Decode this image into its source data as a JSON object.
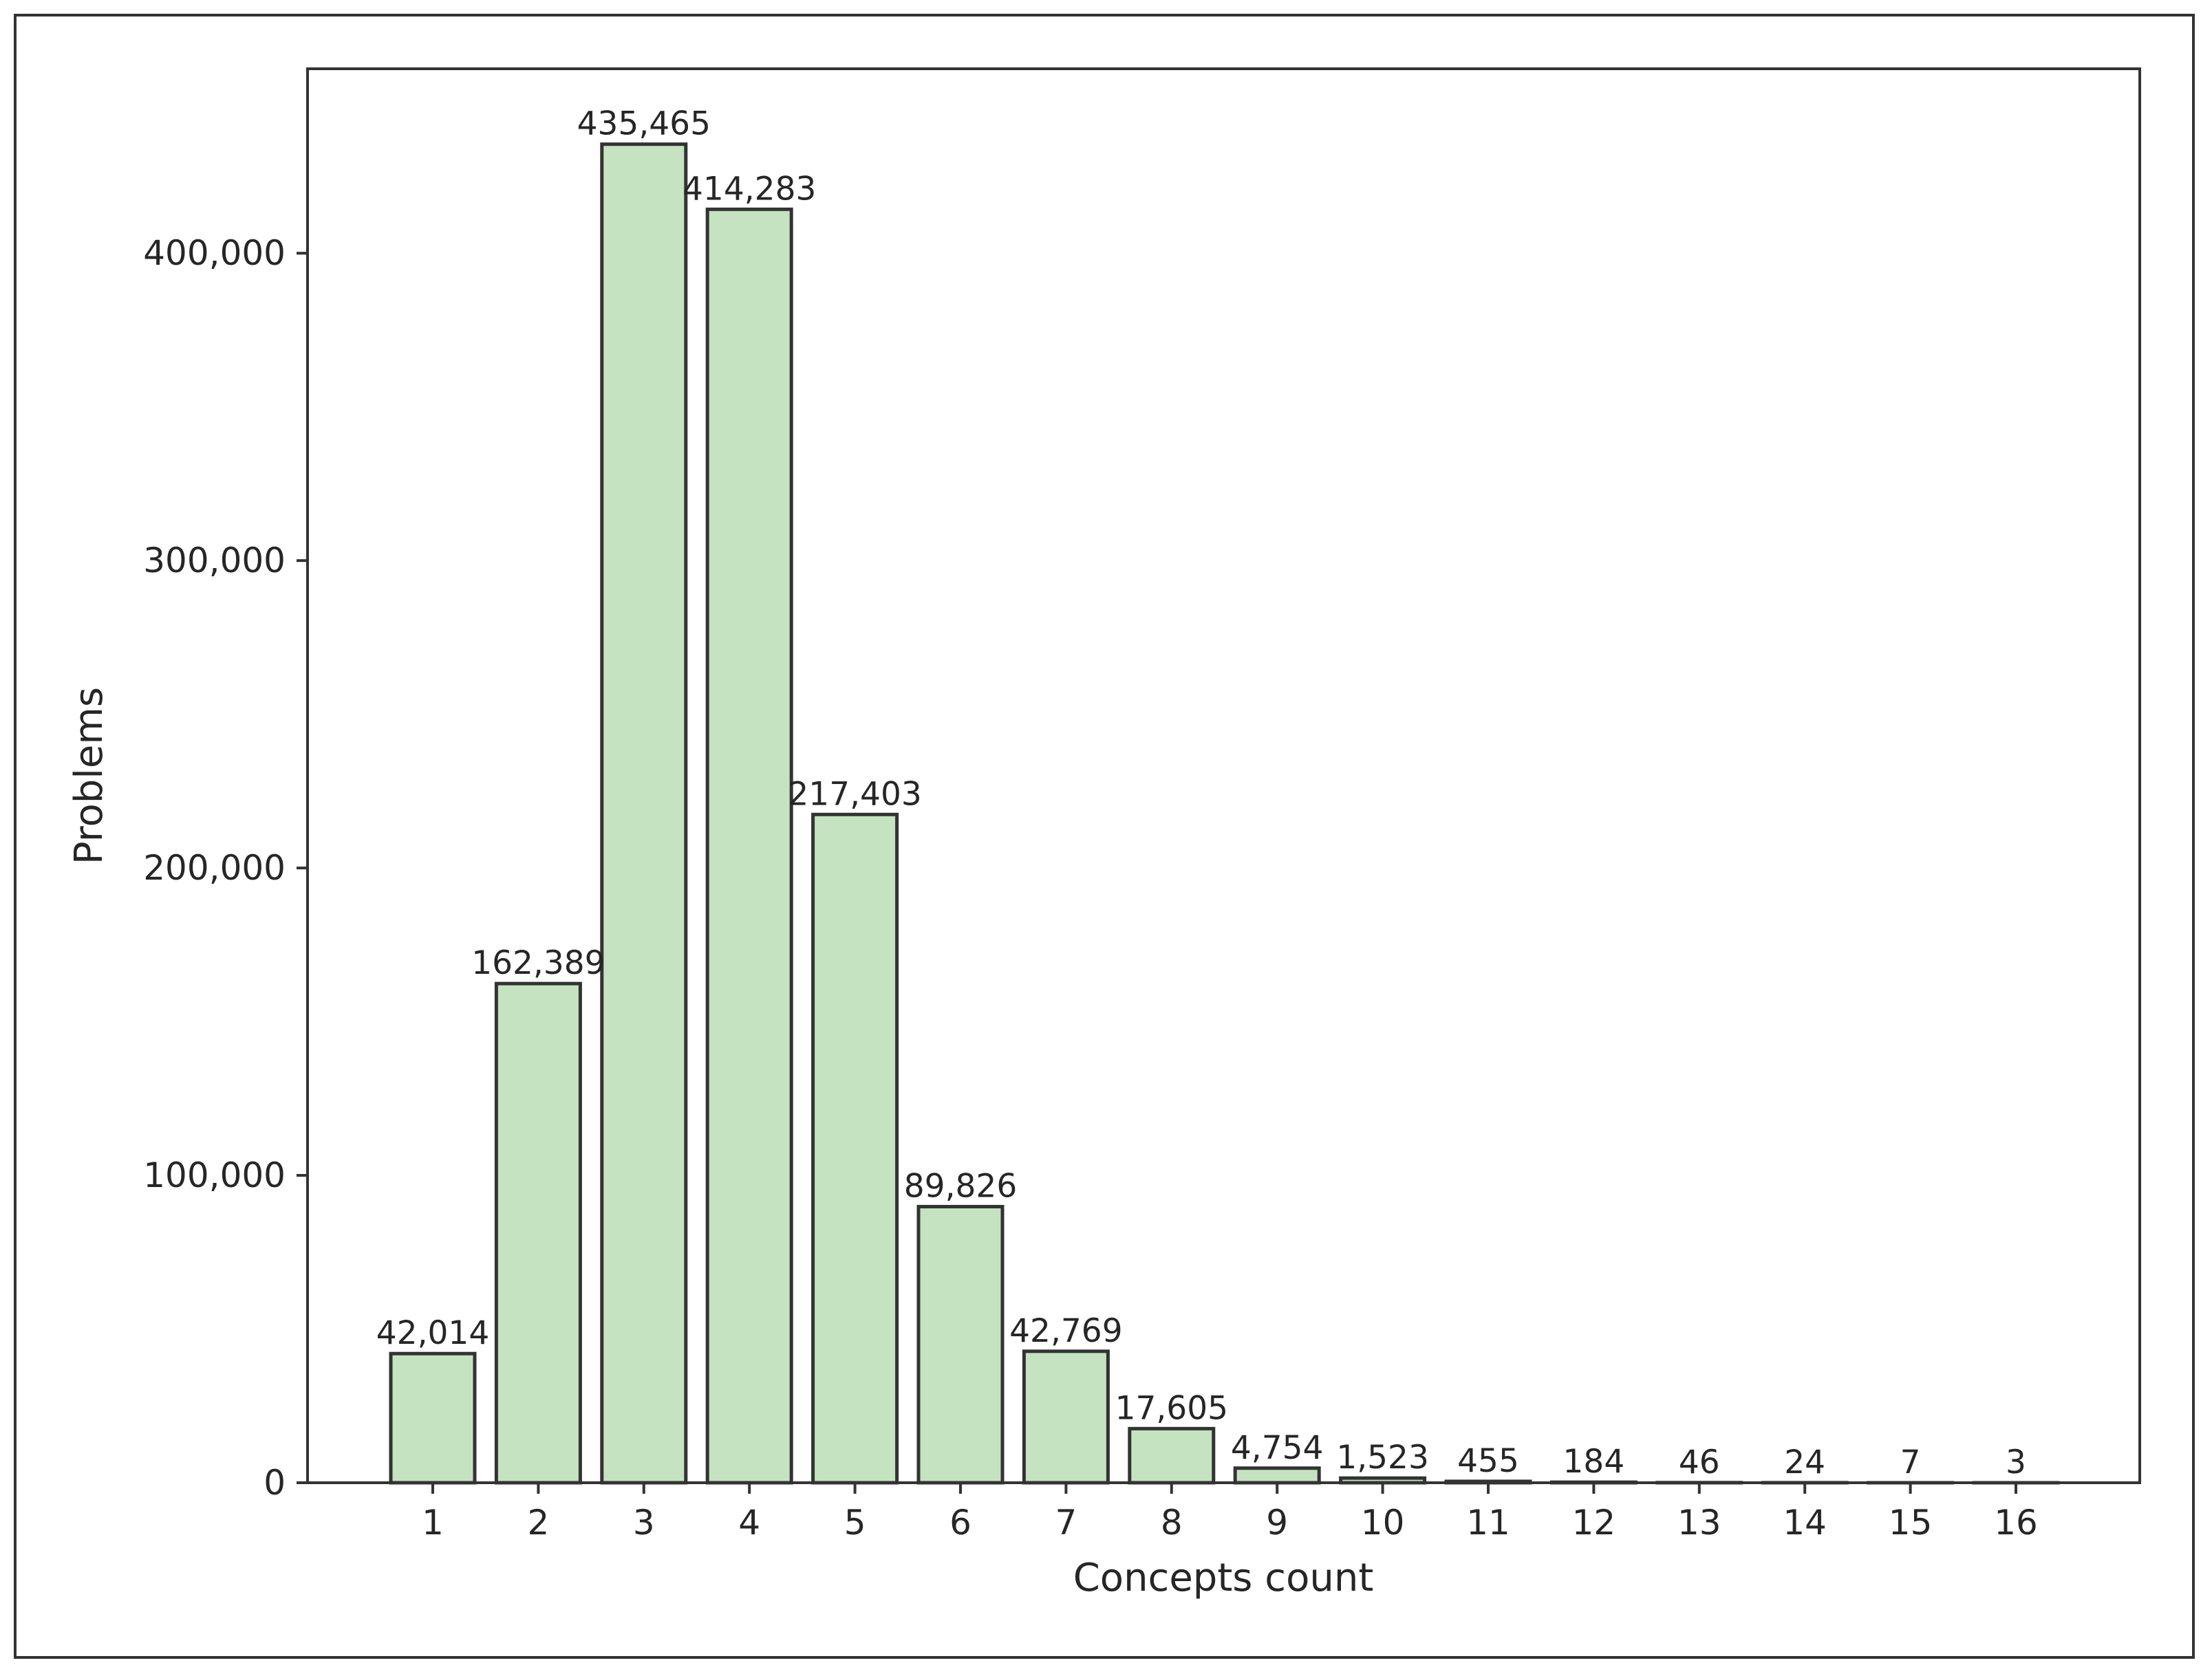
{
  "chart_data": {
    "type": "bar",
    "title": "",
    "xlabel": "Concepts count",
    "ylabel": "Problems",
    "categories": [
      "1",
      "2",
      "3",
      "4",
      "5",
      "6",
      "7",
      "8",
      "9",
      "10",
      "11",
      "12",
      "13",
      "14",
      "15",
      "16"
    ],
    "values": [
      42014,
      162389,
      435465,
      414283,
      217403,
      89826,
      42769,
      17605,
      4754,
      1523,
      455,
      184,
      46,
      24,
      7,
      3
    ],
    "value_labels": [
      "42,014",
      "162,389",
      "435,465",
      "414,283",
      "217,403",
      "89,826",
      "42,769",
      "17,605",
      "4,754",
      "1,523",
      "455",
      "184",
      "46",
      "24",
      "7",
      "3"
    ],
    "yticks": [
      0,
      100000,
      200000,
      300000,
      400000
    ],
    "ytick_labels": [
      "0",
      "100,000",
      "200,000",
      "300,000",
      "400,000"
    ],
    "ylim": [
      0,
      460000
    ],
    "grid": false,
    "legend": "none",
    "colors": {
      "bar_fill": "#c5e3c0",
      "bar_edge": "#333333",
      "axis": "#333333",
      "text": "#262626"
    }
  }
}
